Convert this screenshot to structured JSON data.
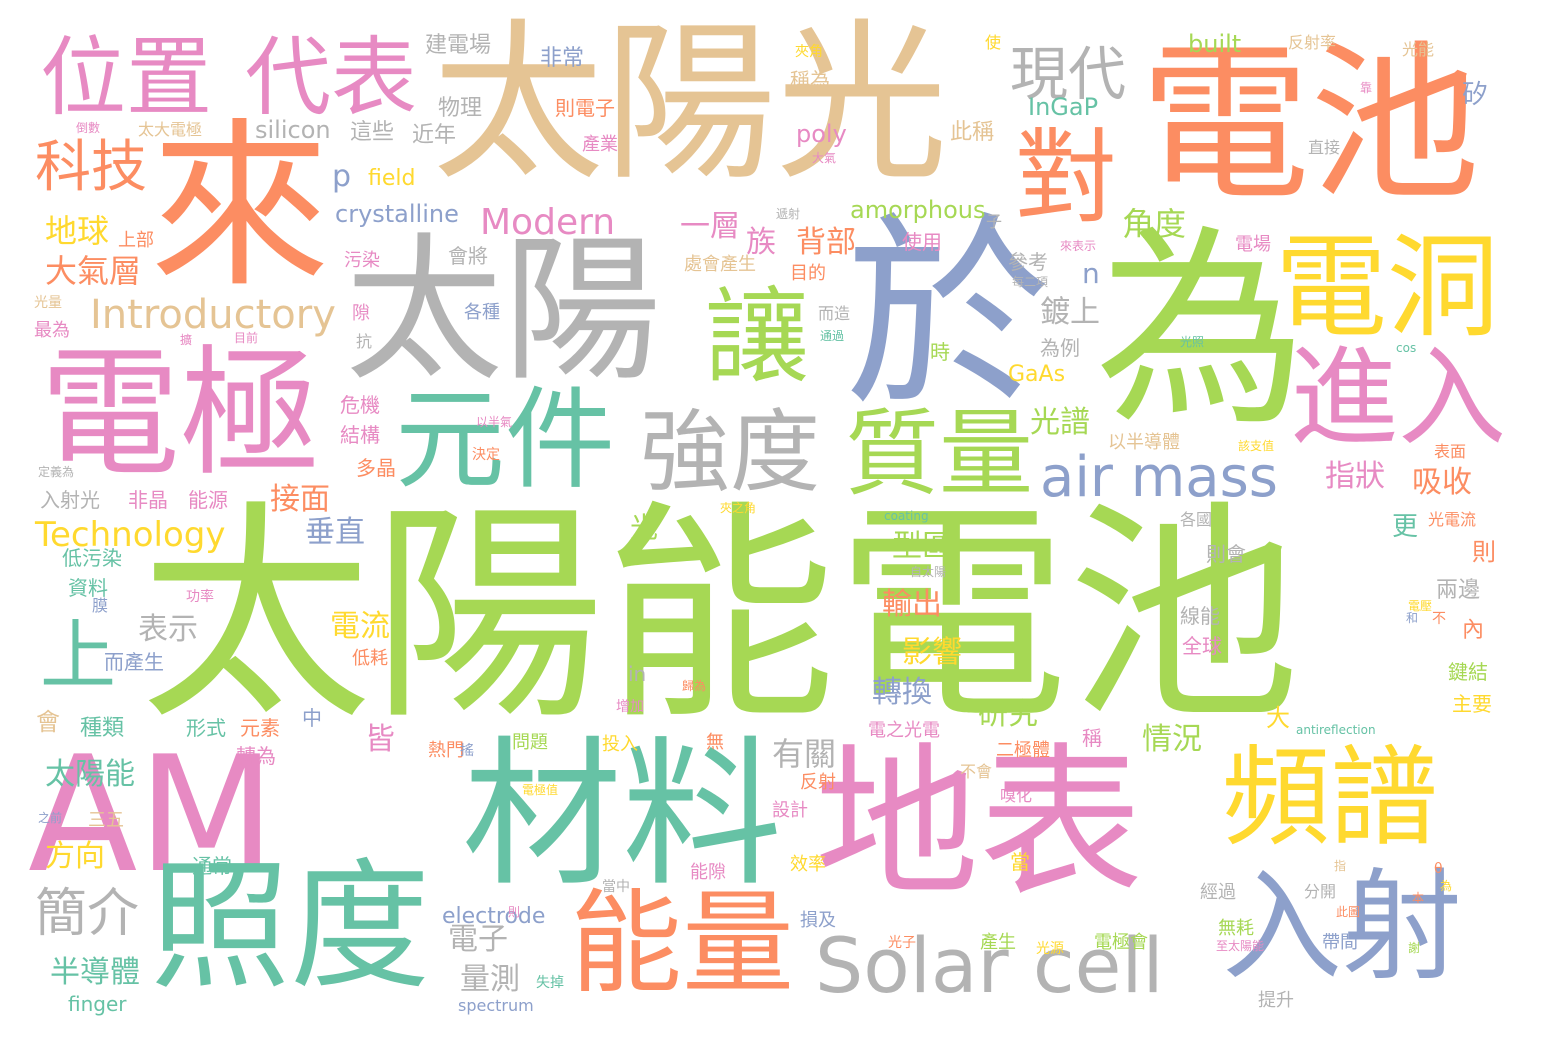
{
  "colors": {
    "green": "#a6d854",
    "orange": "#fc8d62",
    "tan": "#e5c494",
    "pink": "#e78ac3",
    "gray": "#b3b3b3",
    "blue": "#8da0cb",
    "teal": "#66c2a5",
    "yellow": "#ffd92f"
  },
  "words": [
    {
      "text": "太陽能電池",
      "color": "green"
    },
    {
      "text": "太陽光",
      "color": "tan"
    },
    {
      "text": "電池",
      "color": "orange"
    },
    {
      "text": "來",
      "color": "orange"
    },
    {
      "text": "為",
      "color": "green"
    },
    {
      "text": "於",
      "color": "blue"
    },
    {
      "text": "太陽",
      "color": "gray"
    },
    {
      "text": "電極",
      "color": "pink"
    },
    {
      "text": "AM",
      "color": "pink"
    },
    {
      "text": "材料",
      "color": "teal"
    },
    {
      "text": "地表",
      "color": "pink"
    },
    {
      "text": "照度",
      "color": "teal"
    },
    {
      "text": "位置",
      "color": "pink"
    },
    {
      "text": "代表",
      "color": "pink"
    },
    {
      "text": "對",
      "color": "orange"
    },
    {
      "text": "讓",
      "color": "green"
    },
    {
      "text": "電洞",
      "color": "yellow"
    },
    {
      "text": "進入",
      "color": "pink"
    },
    {
      "text": "元件",
      "color": "teal"
    },
    {
      "text": "強度",
      "color": "gray"
    },
    {
      "text": "質量",
      "color": "green"
    },
    {
      "text": "頻譜",
      "color": "yellow"
    },
    {
      "text": "能量",
      "color": "orange"
    },
    {
      "text": "入射",
      "color": "blue"
    },
    {
      "text": "Solar cell",
      "color": "gray"
    },
    {
      "text": "air mass",
      "color": "blue"
    },
    {
      "text": "現代",
      "color": "gray"
    },
    {
      "text": "科技",
      "color": "orange"
    },
    {
      "text": "上",
      "color": "teal"
    },
    {
      "text": "簡介",
      "color": "gray"
    },
    {
      "text": "Introductory",
      "color": "tan"
    },
    {
      "text": "Modern",
      "color": "pink"
    },
    {
      "text": "Technology",
      "color": "yellow"
    },
    {
      "text": "地球",
      "color": "yellow"
    },
    {
      "text": "大氣層",
      "color": "orange"
    },
    {
      "text": "太陽能",
      "color": "teal"
    },
    {
      "text": "半導體",
      "color": "teal"
    },
    {
      "text": "方向",
      "color": "yellow"
    },
    {
      "text": "接面",
      "color": "orange"
    },
    {
      "text": "垂直",
      "color": "blue"
    },
    {
      "text": "表示",
      "color": "gray"
    },
    {
      "text": "電流",
      "color": "yellow"
    },
    {
      "text": "皆",
      "color": "pink"
    },
    {
      "text": "有關",
      "color": "gray"
    },
    {
      "text": "角度",
      "color": "green"
    },
    {
      "text": "背部",
      "color": "orange"
    },
    {
      "text": "一層",
      "color": "pink"
    },
    {
      "text": "族",
      "color": "pink"
    },
    {
      "text": "鍍上",
      "color": "gray"
    },
    {
      "text": "光譜",
      "color": "green"
    },
    {
      "text": "吸收",
      "color": "orange"
    },
    {
      "text": "指狀",
      "color": "pink"
    },
    {
      "text": "型區",
      "color": "green"
    },
    {
      "text": "輸出",
      "color": "orange"
    },
    {
      "text": "影響",
      "color": "yellow"
    },
    {
      "text": "轉換",
      "color": "blue"
    },
    {
      "text": "研究",
      "color": "green"
    },
    {
      "text": "情況",
      "color": "green"
    },
    {
      "text": "電子",
      "color": "gray"
    },
    {
      "text": "量測",
      "color": "gray"
    },
    {
      "text": "crystalline",
      "color": "blue"
    },
    {
      "text": "silicon",
      "color": "gray"
    },
    {
      "text": "p",
      "color": "blue"
    },
    {
      "text": "field",
      "color": "yellow"
    },
    {
      "text": "amorphous",
      "color": "green"
    },
    {
      "text": "poly",
      "color": "pink"
    },
    {
      "text": "InGaP",
      "color": "teal"
    },
    {
      "text": "built",
      "color": "green"
    },
    {
      "text": "GaAs",
      "color": "yellow"
    },
    {
      "text": "n",
      "color": "blue"
    },
    {
      "text": "electrode",
      "color": "blue"
    },
    {
      "text": "finger",
      "color": "teal"
    },
    {
      "text": "spectrum",
      "color": "blue"
    },
    {
      "text": "建電場",
      "color": "gray"
    },
    {
      "text": "非常",
      "color": "blue"
    },
    {
      "text": "物理",
      "color": "gray"
    },
    {
      "text": "這些",
      "color": "gray"
    },
    {
      "text": "近年",
      "color": "gray"
    },
    {
      "text": "則電子",
      "color": "orange"
    },
    {
      "text": "產業",
      "color": "pink"
    },
    {
      "text": "此稱",
      "color": "tan"
    },
    {
      "text": "稱為",
      "color": "tan"
    },
    {
      "text": "夾角",
      "color": "yellow"
    },
    {
      "text": "反射率",
      "color": "tan"
    },
    {
      "text": "光能",
      "color": "tan"
    },
    {
      "text": "矽",
      "color": "blue"
    },
    {
      "text": "直接",
      "color": "gray"
    },
    {
      "text": "使",
      "color": "yellow"
    },
    {
      "text": "太大電極",
      "color": "tan"
    },
    {
      "text": "倒數",
      "color": "pink"
    },
    {
      "text": "上部",
      "color": "orange"
    },
    {
      "text": "污染",
      "color": "pink"
    },
    {
      "text": "會將",
      "color": "gray"
    },
    {
      "text": "各種",
      "color": "blue"
    },
    {
      "text": "處會產生",
      "color": "tan"
    },
    {
      "text": "目的",
      "color": "orange"
    },
    {
      "text": "使用",
      "color": "pink"
    },
    {
      "text": "電場",
      "color": "pink"
    },
    {
      "text": "參考",
      "color": "gray"
    },
    {
      "text": "而造",
      "color": "gray"
    },
    {
      "text": "隙",
      "color": "pink"
    },
    {
      "text": "抗",
      "color": "gray"
    },
    {
      "text": "最為",
      "color": "pink"
    },
    {
      "text": "光量",
      "color": "tan"
    },
    {
      "text": "時",
      "color": "green"
    },
    {
      "text": "為例",
      "color": "gray"
    },
    {
      "text": "危機",
      "color": "pink"
    },
    {
      "text": "結構",
      "color": "pink"
    },
    {
      "text": "多晶",
      "color": "orange"
    },
    {
      "text": "決定",
      "color": "orange"
    },
    {
      "text": "以半導體",
      "color": "tan"
    },
    {
      "text": "表面",
      "color": "orange"
    },
    {
      "text": "入射光",
      "color": "gray"
    },
    {
      "text": "非晶",
      "color": "pink"
    },
    {
      "text": "能源",
      "color": "pink"
    },
    {
      "text": "低污染",
      "color": "teal"
    },
    {
      "text": "資料",
      "color": "teal"
    },
    {
      "text": "膜",
      "color": "blue"
    },
    {
      "text": "功率",
      "color": "pink"
    },
    {
      "text": "而產生",
      "color": "blue"
    },
    {
      "text": "低耗",
      "color": "orange"
    },
    {
      "text": "光",
      "color": "green"
    },
    {
      "text": "更",
      "color": "teal"
    },
    {
      "text": "則會",
      "color": "gray"
    },
    {
      "text": "則",
      "color": "orange"
    },
    {
      "text": "兩邊",
      "color": "gray"
    },
    {
      "text": "內",
      "color": "orange"
    },
    {
      "text": "鍵結",
      "color": "green"
    },
    {
      "text": "主要",
      "color": "yellow"
    },
    {
      "text": "線能",
      "color": "gray"
    },
    {
      "text": "全球",
      "color": "pink"
    },
    {
      "text": "不",
      "color": "orange"
    },
    {
      "text": "光電流",
      "color": "orange"
    },
    {
      "text": "各國",
      "color": "gray"
    },
    {
      "text": "會",
      "color": "tan"
    },
    {
      "text": "種類",
      "color": "teal"
    },
    {
      "text": "形式",
      "color": "teal"
    },
    {
      "text": "元素",
      "color": "orange"
    },
    {
      "text": "中",
      "color": "blue"
    },
    {
      "text": "轉為",
      "color": "pink"
    },
    {
      "text": "熱門",
      "color": "orange"
    },
    {
      "text": "問題",
      "color": "green"
    },
    {
      "text": "投入",
      "color": "yellow"
    },
    {
      "text": "無",
      "color": "orange"
    },
    {
      "text": "電之光電",
      "color": "pink"
    },
    {
      "text": "二極體",
      "color": "orange"
    },
    {
      "text": "不會",
      "color": "tan"
    },
    {
      "text": "嗅化",
      "color": "pink"
    },
    {
      "text": "反射",
      "color": "orange"
    },
    {
      "text": "設計",
      "color": "pink"
    },
    {
      "text": "當",
      "color": "yellow"
    },
    {
      "text": "效率",
      "color": "yellow"
    },
    {
      "text": "能隙",
      "color": "pink"
    },
    {
      "text": "三五",
      "color": "tan"
    },
    {
      "text": "通常",
      "color": "teal"
    },
    {
      "text": "經過",
      "color": "gray"
    },
    {
      "text": "分開",
      "color": "gray"
    },
    {
      "text": "無耗",
      "color": "green"
    },
    {
      "text": "帶間",
      "color": "blue"
    },
    {
      "text": "損及",
      "color": "blue"
    },
    {
      "text": "光子",
      "color": "orange"
    },
    {
      "text": "產生",
      "color": "green"
    },
    {
      "text": "光源",
      "color": "yellow"
    },
    {
      "text": "電極會",
      "color": "green"
    },
    {
      "text": "失掉",
      "color": "teal"
    },
    {
      "text": "提升",
      "color": "gray"
    },
    {
      "text": "in",
      "color": "gray"
    },
    {
      "text": "增加",
      "color": "pink"
    },
    {
      "text": "大",
      "color": "yellow"
    },
    {
      "text": "稱",
      "color": "pink"
    },
    {
      "text": "antireflection",
      "color": "teal"
    },
    {
      "text": "coating",
      "color": "teal"
    },
    {
      "text": "cos",
      "color": "teal"
    },
    {
      "text": "θ",
      "color": "orange"
    },
    {
      "text": "自太陽",
      "color": "gray"
    },
    {
      "text": "當中",
      "color": "gray"
    },
    {
      "text": "之前",
      "color": "blue"
    },
    {
      "text": "搖",
      "color": "blue"
    },
    {
      "text": "定義為",
      "color": "gray"
    },
    {
      "text": "靠",
      "color": "pink"
    },
    {
      "text": "擴",
      "color": "pink"
    },
    {
      "text": "來表示",
      "color": "pink"
    },
    {
      "text": "遞射",
      "color": "gray"
    },
    {
      "text": "子",
      "color": "gray"
    },
    {
      "text": "每二項",
      "color": "gray"
    },
    {
      "text": "大氣",
      "color": "pink"
    },
    {
      "text": "通過",
      "color": "teal"
    },
    {
      "text": "電壓",
      "color": "yellow"
    },
    {
      "text": "夾之角",
      "color": "yellow"
    },
    {
      "text": "目前",
      "color": "pink"
    },
    {
      "text": "至太陽能",
      "color": "pink"
    },
    {
      "text": "光照",
      "color": "teal"
    },
    {
      "text": "歸為",
      "color": "orange"
    },
    {
      "text": "和",
      "color": "blue"
    },
    {
      "text": "謝",
      "color": "green"
    },
    {
      "text": "為",
      "color": "yellow"
    },
    {
      "text": "本",
      "color": "orange"
    },
    {
      "text": "此圖",
      "color": "orange"
    },
    {
      "text": "以半氣",
      "color": "pink"
    },
    {
      "text": "該支值",
      "color": "yellow"
    },
    {
      "text": "電極值",
      "color": "yellow"
    },
    {
      "text": "指",
      "color": "tan"
    },
    {
      "text": "則",
      "color": "pink"
    }
  ]
}
